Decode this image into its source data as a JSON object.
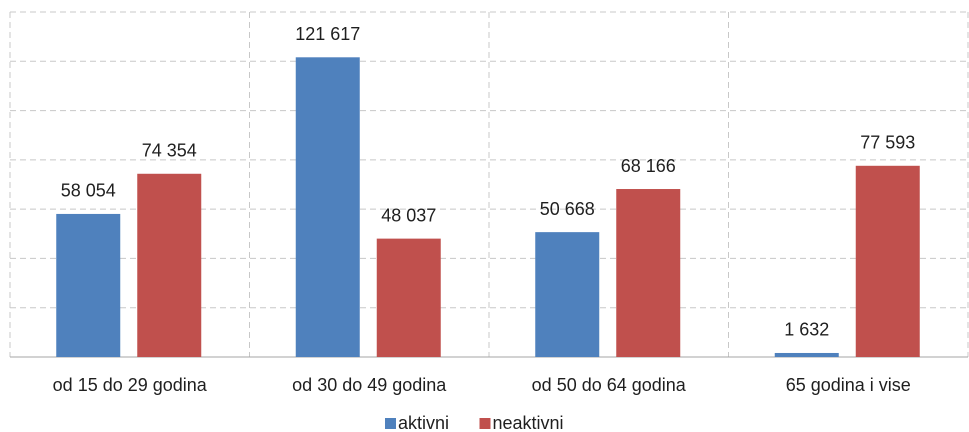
{
  "chart_data": {
    "type": "bar",
    "categories": [
      "od 15 do 29 godina",
      "od 30 do 49 godina",
      "od 50 do 64 godina",
      "65 godina i vise"
    ],
    "series": [
      {
        "name": "aktivni",
        "color": "#4f81bd",
        "values": [
          58054,
          121617,
          50668,
          1632
        ],
        "value_labels": [
          "58 054",
          "121 617",
          "50 668",
          "1 632"
        ]
      },
      {
        "name": "neaktivni",
        "color": "#c0504d",
        "values": [
          74354,
          48037,
          68166,
          77593
        ],
        "value_labels": [
          "74 354",
          "48 037",
          "68 166",
          "77 593"
        ]
      }
    ],
    "ylim": [
      0,
      140000
    ],
    "yticks": [
      0,
      20000,
      40000,
      60000,
      80000,
      100000,
      120000,
      140000
    ],
    "grid": true,
    "legend": "bottom"
  }
}
